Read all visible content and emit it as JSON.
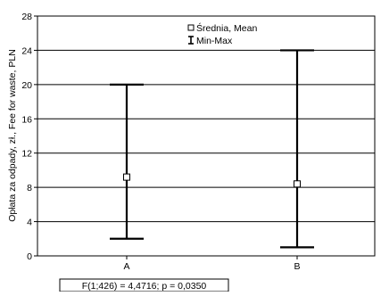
{
  "chart_data": {
    "type": "box",
    "categories": [
      "A",
      "B"
    ],
    "mean": [
      9.2,
      8.4
    ],
    "min": [
      2.0,
      1.0
    ],
    "max": [
      20.0,
      24.0
    ],
    "ylabel": "Opłata za odpady, zł., Fee for waste, PLN",
    "xlabel": "",
    "ylim": [
      0,
      28
    ],
    "yticks": [
      0,
      4,
      8,
      12,
      16,
      20,
      24,
      28
    ],
    "grid": "horizontal",
    "legend": {
      "placement": "top-center",
      "entries": [
        {
          "symbol": "square",
          "label": "Średnia, Mean"
        },
        {
          "symbol": "whisker",
          "label": "Min-Max"
        }
      ]
    },
    "annotation": "F(1;426) = 4,4716; p = 0,0350"
  }
}
